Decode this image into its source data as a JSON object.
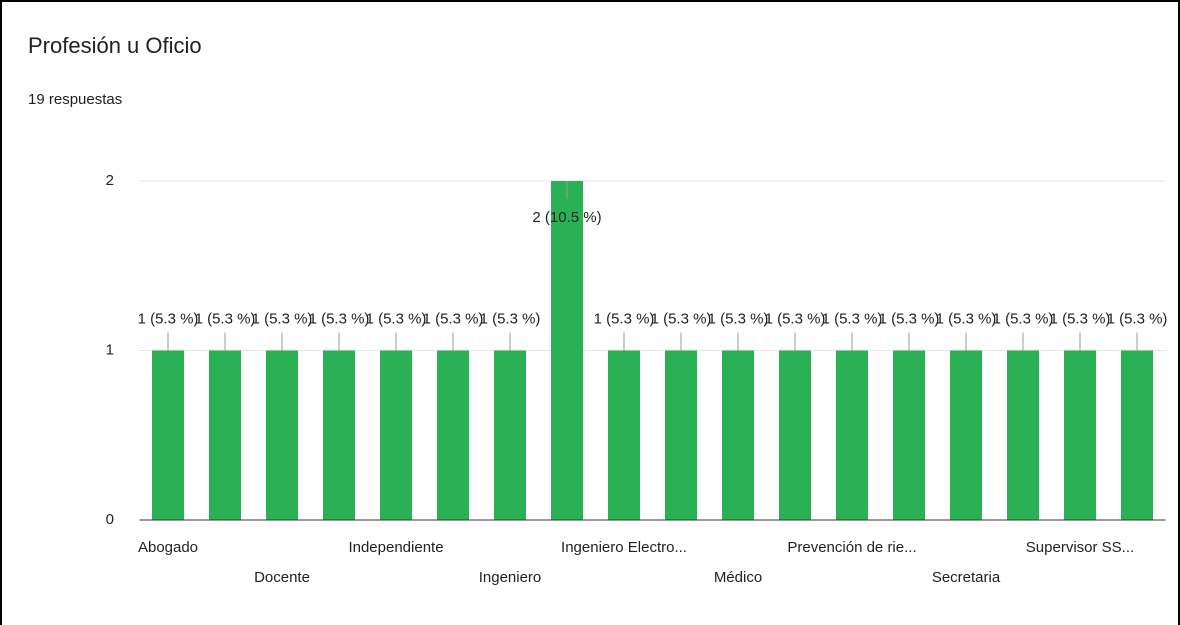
{
  "chart_data": {
    "type": "bar",
    "title": "Profesión u Oficio",
    "subtitle": "19 respuestas",
    "categories": [
      "Abogado",
      null,
      "Docente",
      null,
      "Independiente",
      null,
      "Ingeniero",
      null,
      "Ingeniero Electro...",
      null,
      "Médico",
      null,
      "Prevención de rie...",
      null,
      "Secretaria",
      null,
      "Supervisor SS...",
      null
    ],
    "values": [
      1,
      1,
      1,
      1,
      1,
      1,
      1,
      2,
      1,
      1,
      1,
      1,
      1,
      1,
      1,
      1,
      1,
      1
    ],
    "value_labels": [
      "1 (5.3 %)",
      "1 (5.3 %)",
      "1 (5.3 %)",
      "1 (5.3 %)",
      "1 (5.3 %)",
      "1 (5.3 %)",
      "1 (5.3 %)",
      "2 (10.5 %)",
      "1 (5.3 %)",
      "1 (5.3 %)",
      "1 (5.3 %)",
      "1 (5.3 %)",
      "1 (5.3 %)",
      "1 (5.3 %)",
      "1 (5.3 %)",
      "1 (5.3 %)",
      "1 (5.3 %)",
      "1 (5.3 %)"
    ],
    "color": "#2bb155",
    "ylim": [
      0,
      2
    ],
    "yticks": [
      0,
      1,
      2
    ],
    "grid": true
  }
}
